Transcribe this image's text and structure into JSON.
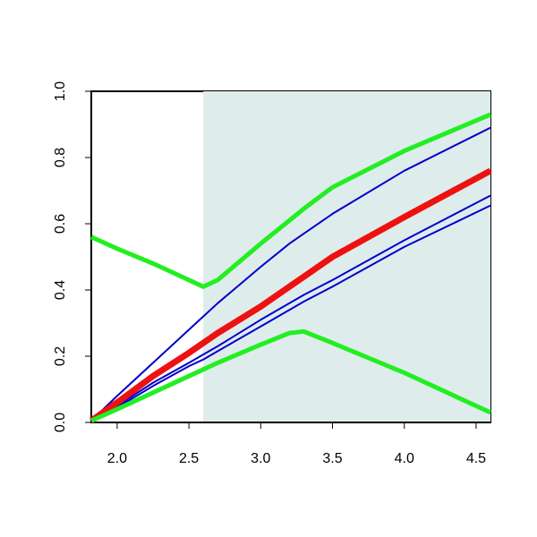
{
  "chart_data": {
    "type": "line",
    "x": [
      1.82,
      2.0,
      2.25,
      2.5,
      2.6,
      2.7,
      3.0,
      3.2,
      3.3,
      3.5,
      4.0,
      4.6
    ],
    "series": [
      {
        "color": "#0000cc",
        "line_width": 2,
        "values": [
          0.005,
          0.08,
          0.18,
          0.28,
          0.32,
          0.36,
          0.47,
          0.54,
          0.57,
          0.63,
          0.76,
          0.89
        ]
      },
      {
        "color": "#0000cc",
        "line_width": 2,
        "values": [
          0.005,
          0.05,
          0.12,
          0.18,
          0.205,
          0.23,
          0.31,
          0.36,
          0.385,
          0.43,
          0.55,
          0.685
        ]
      },
      {
        "color": "#0000cc",
        "line_width": 2,
        "values": [
          0.005,
          0.045,
          0.11,
          0.17,
          0.19,
          0.215,
          0.29,
          0.34,
          0.365,
          0.41,
          0.53,
          0.655
        ]
      },
      {
        "color": "#ee1111",
        "line_width": 7,
        "values": [
          0.005,
          0.06,
          0.14,
          0.21,
          0.24,
          0.27,
          0.35,
          0.41,
          0.44,
          0.5,
          0.62,
          0.76
        ]
      },
      {
        "color": "#22ee22",
        "line_width": 5,
        "values": [
          0.56,
          0.525,
          0.48,
          0.43,
          0.41,
          0.43,
          0.54,
          0.61,
          0.645,
          0.71,
          0.82,
          0.93
        ]
      },
      {
        "color": "#22ee22",
        "line_width": 5,
        "values": [
          0.005,
          0.04,
          0.09,
          0.14,
          0.16,
          0.18,
          0.235,
          0.27,
          0.275,
          0.24,
          0.15,
          0.03
        ]
      }
    ],
    "shaded_region": {
      "xlim": [
        2.6,
        4.6
      ],
      "color": "#dfecec"
    },
    "xlim": [
      1.82,
      4.6
    ],
    "ylim": [
      0,
      1
    ],
    "xticks": [
      {
        "value": 2,
        "label": "2.0"
      },
      2.5,
      {
        "value": 3,
        "label": "3.0"
      },
      3.5,
      {
        "value": 4,
        "label": "4.0"
      },
      4.5
    ],
    "yticks": [
      {
        "value": 0,
        "label": "0.0"
      },
      0.2,
      0.4,
      0.6,
      0.8,
      {
        "value": 1,
        "label": "1.0"
      }
    ]
  }
}
